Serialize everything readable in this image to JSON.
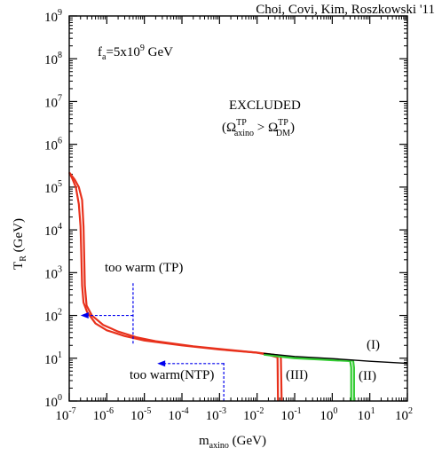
{
  "chart_data": {
    "type": "line",
    "credit": "Choi, Covi, Kim, Roszkowski '11",
    "xlabel": {
      "main": "m",
      "sub": "axino",
      "unit": " (GeV)"
    },
    "ylabel": {
      "main": "T",
      "sub": "R",
      "unit": " (GeV)"
    },
    "x_scale": "log",
    "y_scale": "log",
    "xlim": [
      1e-07,
      100
    ],
    "ylim": [
      1,
      1000000000.0
    ],
    "x_ticks": [
      {
        "v": 1e-07,
        "b": "10",
        "e": "-7"
      },
      {
        "v": 1e-06,
        "b": "10",
        "e": "-6"
      },
      {
        "v": 1e-05,
        "b": "10",
        "e": "-5"
      },
      {
        "v": 0.0001,
        "b": "10",
        "e": "-4"
      },
      {
        "v": 0.001,
        "b": "10",
        "e": "-3"
      },
      {
        "v": 0.01,
        "b": "10",
        "e": "-2"
      },
      {
        "v": 0.1,
        "b": "10",
        "e": "-1"
      },
      {
        "v": 1,
        "b": "10",
        "e": "0"
      },
      {
        "v": 10,
        "b": "10",
        "e": "1"
      },
      {
        "v": 100,
        "b": "10",
        "e": "2"
      }
    ],
    "y_ticks": [
      {
        "v": 1,
        "b": "10",
        "e": "0"
      },
      {
        "v": 10,
        "b": "10",
        "e": "1"
      },
      {
        "v": 100,
        "b": "10",
        "e": "2"
      },
      {
        "v": 1000,
        "b": "10",
        "e": "3"
      },
      {
        "v": 10000,
        "b": "10",
        "e": "4"
      },
      {
        "v": 100000,
        "b": "10",
        "e": "5"
      },
      {
        "v": 1000000,
        "b": "10",
        "e": "6"
      },
      {
        "v": 10000000,
        "b": "10",
        "e": "7"
      },
      {
        "v": 100000000,
        "b": "10",
        "e": "8"
      },
      {
        "v": 1000000000,
        "b": "10",
        "e": "9"
      }
    ],
    "annotations": {
      "fa": {
        "a": "f",
        "sub": "a",
        "b": "=5x10",
        "sup": "9",
        "c": " GeV"
      },
      "excluded": "EXCLUDED",
      "omega": {
        "open": "(",
        "om": "Ω",
        "sup1": "TP",
        "sub1": "axino",
        "gt": " > ",
        "sup2": "TP",
        "sub2": "DM",
        "close": ")"
      },
      "too_warm_tp": "too warm (TP)",
      "too_warm_ntp": "too warm(NTP)",
      "region_I": "(I)",
      "region_II": "(II)",
      "region_III": "(III)"
    },
    "colors": {
      "red": "#e8311c",
      "green": "#33cc33",
      "black": "#000000",
      "blue": "#0000ee"
    },
    "series": [
      {
        "color": "red",
        "points": [
          [
            1e-07,
            220000.0
          ],
          [
            1.2e-07,
            160000.0
          ],
          [
            1.5e-07,
            100000.0
          ],
          [
            1.8e-07,
            40000.0
          ],
          [
            2e-07,
            12000.0
          ],
          [
            2.1e-07,
            2500.0
          ],
          [
            2.2e-07,
            500.0
          ],
          [
            2.4e-07,
            200.0
          ],
          [
            3e-07,
            120.0
          ],
          [
            5e-07,
            65.0
          ],
          [
            1e-06,
            45.0
          ],
          [
            3e-06,
            33.0
          ],
          [
            1e-05,
            26.0
          ],
          [
            0.0001,
            20.0
          ],
          [
            0.001,
            16.0
          ],
          [
            0.01,
            13.5
          ],
          [
            0.02,
            12.5
          ],
          [
            0.04,
            11.5
          ],
          [
            0.043,
            10.0
          ],
          [
            0.045,
            1.0
          ]
        ]
      },
      {
        "color": "red",
        "points": [
          [
            1e-07,
            220000.0
          ],
          [
            1.4e-07,
            150000.0
          ],
          [
            1.8e-07,
            100000.0
          ],
          [
            2.2e-07,
            50000.0
          ],
          [
            2.4e-07,
            12000.0
          ],
          [
            2.5e-07,
            2500.0
          ],
          [
            2.6e-07,
            500.0
          ],
          [
            2.9e-07,
            170.0
          ],
          [
            4e-07,
            100.0
          ],
          [
            8e-07,
            60.0
          ],
          [
            2e-06,
            42.0
          ],
          [
            6e-06,
            31.0
          ],
          [
            2e-05,
            25.0
          ],
          [
            0.0002,
            19.0
          ],
          [
            0.002,
            15.5
          ],
          [
            0.01,
            13.5
          ],
          [
            0.02,
            12.0
          ],
          [
            0.035,
            10.5
          ],
          [
            0.036,
            1.0
          ]
        ]
      },
      {
        "color": "green",
        "points": [
          [
            0.018,
            12.5
          ],
          [
            0.05,
            11.2
          ],
          [
            0.1,
            10.4
          ],
          [
            0.5,
            9.6
          ],
          [
            1,
            9.2
          ],
          [
            3.6,
            8.8
          ],
          [
            3.8,
            6.0
          ],
          [
            3.8,
            1.0
          ]
        ]
      },
      {
        "color": "green",
        "points": [
          [
            0.015,
            12.2
          ],
          [
            0.05,
            10.7
          ],
          [
            0.1,
            10.0
          ],
          [
            0.5,
            9.3
          ],
          [
            1,
            9.0
          ],
          [
            3.0,
            8.6
          ],
          [
            3.2,
            6.0
          ],
          [
            3.2,
            1.0
          ]
        ]
      },
      {
        "color": "black",
        "points": [
          [
            0.015,
            13.0
          ],
          [
            0.1,
            11.0
          ],
          [
            1,
            9.8
          ],
          [
            10,
            8.5
          ],
          [
            100,
            7.6
          ]
        ]
      }
    ],
    "arrows": [
      {
        "label": "too_warm_tp",
        "x": 5e-06,
        "y_span": [
          22,
          600
        ],
        "tip": [
          2e-07,
          100
        ],
        "tail_x": 5e-06
      },
      {
        "label": "too_warm_ntp",
        "x": 0.0013,
        "y_span": [
          1,
          8.5
        ],
        "tip": [
          2.2e-05,
          7.5
        ],
        "tail_x": 0.0013
      }
    ]
  }
}
